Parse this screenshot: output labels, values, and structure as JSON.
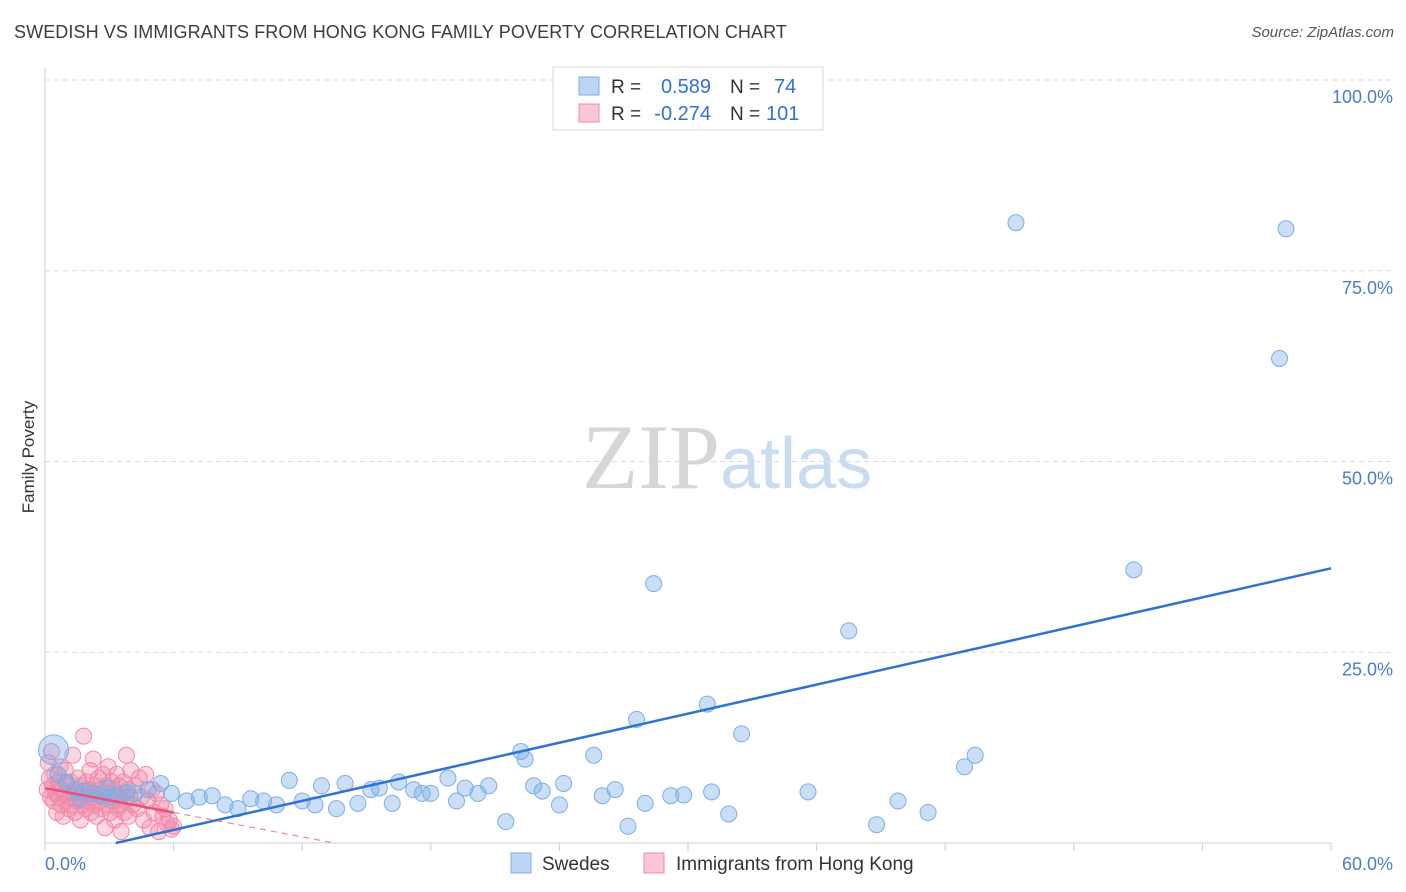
{
  "title": "SWEDISH VS IMMIGRANTS FROM HONG KONG FAMILY POVERTY CORRELATION CHART",
  "source": "Source: ZipAtlas.com",
  "watermark": {
    "zip": "ZIP",
    "atlas": "atlas"
  },
  "colors": {
    "blue": "#7aaee8",
    "blue_line": "#2f72d4",
    "pink": "#f08aaa",
    "pink_line": "#e8507e",
    "axis_text": "#4a7cc8",
    "grid": "#dcdcdc"
  },
  "legend": {
    "rows": [
      {
        "r_label": "R =",
        "r_value": "0.589",
        "n_label": "N =",
        "n_value": "74"
      },
      {
        "r_label": "R =",
        "r_value": "-0.274",
        "n_label": "N =",
        "n_value": "101"
      }
    ]
  },
  "bottom_legend": [
    "Swedes",
    "Immigrants from Hong Kong"
  ],
  "chart_data": {
    "type": "scatter",
    "xlabel": "",
    "ylabel": "Family Poverty",
    "xlim": [
      0,
      60
    ],
    "ylim": [
      0,
      100
    ],
    "x_tick_labels": [
      "0.0%",
      "60.0%"
    ],
    "y_tick_labels": [
      "25.0%",
      "50.0%",
      "75.0%",
      "100.0%"
    ],
    "y_ticks": [
      25,
      50,
      75,
      100
    ],
    "series": [
      {
        "name": "Swedes",
        "r": 0.589,
        "n": 74,
        "trend": {
          "x": [
            3.3,
            60
          ],
          "y": [
            0,
            36
          ]
        },
        "points": [
          [
            0.4,
            12.2
          ],
          [
            0.6,
            9.0
          ],
          [
            1.0,
            8.0
          ],
          [
            1.4,
            7.0
          ],
          [
            1.8,
            6.8
          ],
          [
            2.2,
            6.5
          ],
          [
            2.6,
            6.2
          ],
          [
            3.0,
            6.0
          ],
          [
            3.4,
            6.3
          ],
          [
            3.8,
            6.6
          ],
          [
            4.2,
            6.5
          ],
          [
            4.8,
            7.0
          ],
          [
            5.4,
            7.8
          ],
          [
            5.9,
            6.5
          ],
          [
            6.6,
            5.5
          ],
          [
            7.2,
            6.0
          ],
          [
            7.8,
            6.2
          ],
          [
            8.4,
            5.0
          ],
          [
            9.0,
            4.5
          ],
          [
            9.6,
            5.8
          ],
          [
            10.2,
            5.5
          ],
          [
            10.8,
            5.0
          ],
          [
            11.4,
            8.2
          ],
          [
            12.0,
            5.5
          ],
          [
            12.6,
            5.0
          ],
          [
            12.9,
            7.5
          ],
          [
            13.6,
            4.5
          ],
          [
            14.0,
            7.8
          ],
          [
            14.6,
            5.2
          ],
          [
            15.2,
            7.0
          ],
          [
            15.6,
            7.2
          ],
          [
            16.2,
            5.2
          ],
          [
            16.5,
            8.0
          ],
          [
            17.2,
            7.0
          ],
          [
            17.6,
            6.5
          ],
          [
            18.0,
            6.5
          ],
          [
            18.8,
            8.5
          ],
          [
            19.2,
            5.5
          ],
          [
            19.6,
            7.2
          ],
          [
            20.2,
            6.5
          ],
          [
            20.7,
            7.5
          ],
          [
            21.5,
            2.8
          ],
          [
            22.2,
            12.0
          ],
          [
            22.4,
            11.0
          ],
          [
            22.8,
            7.5
          ],
          [
            23.2,
            6.8
          ],
          [
            24.0,
            5.0
          ],
          [
            24.2,
            7.8
          ],
          [
            25.6,
            11.5
          ],
          [
            26.0,
            6.2
          ],
          [
            26.6,
            7.0
          ],
          [
            27.2,
            2.2
          ],
          [
            27.6,
            16.2
          ],
          [
            28.0,
            5.2
          ],
          [
            28.4,
            34.0
          ],
          [
            29.2,
            6.2
          ],
          [
            29.8,
            6.3
          ],
          [
            30.9,
            18.2
          ],
          [
            31.1,
            6.7
          ],
          [
            31.9,
            3.8
          ],
          [
            32.5,
            14.3
          ],
          [
            35.6,
            6.7
          ],
          [
            37.5,
            27.8
          ],
          [
            38.8,
            2.4
          ],
          [
            39.8,
            5.5
          ],
          [
            41.2,
            4.0
          ],
          [
            42.9,
            10.0
          ],
          [
            43.4,
            11.5
          ],
          [
            45.3,
            81.3
          ],
          [
            50.8,
            35.8
          ],
          [
            57.6,
            63.5
          ],
          [
            57.9,
            80.5
          ],
          [
            1.6,
            5.8
          ],
          [
            2.9,
            7.2
          ]
        ]
      },
      {
        "name": "Immigrants from Hong Kong",
        "r": -0.274,
        "n": 101,
        "trend": {
          "x": [
            0,
            6.0
          ],
          "y": [
            7.2,
            4.0
          ]
        },
        "trend_extension": {
          "x": [
            6.0,
            13.5
          ],
          "y": [
            4.0,
            0
          ]
        },
        "points": [
          [
            0.1,
            7.0
          ],
          [
            0.15,
            10.5
          ],
          [
            0.2,
            8.5
          ],
          [
            0.25,
            6.0
          ],
          [
            0.3,
            12.0
          ],
          [
            0.35,
            7.5
          ],
          [
            0.4,
            5.5
          ],
          [
            0.45,
            9.0
          ],
          [
            0.5,
            6.5
          ],
          [
            0.55,
            4.0
          ],
          [
            0.6,
            8.0
          ],
          [
            0.65,
            6.0
          ],
          [
            0.7,
            10.0
          ],
          [
            0.75,
            5.0
          ],
          [
            0.8,
            7.0
          ],
          [
            0.85,
            3.5
          ],
          [
            0.9,
            6.5
          ],
          [
            0.95,
            9.5
          ],
          [
            1.0,
            5.5
          ],
          [
            1.05,
            7.5
          ],
          [
            1.1,
            4.5
          ],
          [
            1.15,
            6.0
          ],
          [
            1.2,
            8.0
          ],
          [
            1.25,
            5.0
          ],
          [
            1.3,
            11.5
          ],
          [
            1.35,
            6.5
          ],
          [
            1.4,
            4.0
          ],
          [
            1.45,
            7.0
          ],
          [
            1.5,
            5.5
          ],
          [
            1.55,
            8.5
          ],
          [
            1.6,
            6.0
          ],
          [
            1.65,
            3.0
          ],
          [
            1.7,
            7.5
          ],
          [
            1.75,
            5.0
          ],
          [
            1.8,
            14.0
          ],
          [
            1.85,
            6.5
          ],
          [
            1.9,
            4.5
          ],
          [
            1.95,
            8.0
          ],
          [
            2.0,
            5.5
          ],
          [
            2.05,
            7.0
          ],
          [
            2.1,
            9.5
          ],
          [
            2.15,
            4.0
          ],
          [
            2.2,
            6.0
          ],
          [
            2.25,
            11.0
          ],
          [
            2.3,
            5.0
          ],
          [
            2.35,
            7.5
          ],
          [
            2.4,
            3.5
          ],
          [
            2.45,
            6.5
          ],
          [
            2.5,
            8.5
          ],
          [
            2.55,
            5.5
          ],
          [
            2.6,
            7.0
          ],
          [
            2.65,
            4.5
          ],
          [
            2.7,
            9.0
          ],
          [
            2.75,
            6.0
          ],
          [
            2.8,
            2.0
          ],
          [
            2.85,
            7.5
          ],
          [
            2.9,
            5.0
          ],
          [
            2.95,
            10.0
          ],
          [
            3.0,
            6.5
          ],
          [
            3.05,
            4.0
          ],
          [
            3.1,
            8.0
          ],
          [
            3.15,
            5.5
          ],
          [
            3.2,
            7.0
          ],
          [
            3.25,
            3.0
          ],
          [
            3.3,
            6.0
          ],
          [
            3.35,
            9.0
          ],
          [
            3.4,
            4.5
          ],
          [
            3.45,
            7.5
          ],
          [
            3.5,
            5.0
          ],
          [
            3.55,
            1.5
          ],
          [
            3.6,
            6.5
          ],
          [
            3.65,
            8.0
          ],
          [
            3.7,
            4.0
          ],
          [
            3.75,
            5.5
          ],
          [
            3.8,
            11.5
          ],
          [
            3.85,
            7.0
          ],
          [
            3.9,
            3.5
          ],
          [
            3.95,
            6.0
          ],
          [
            4.0,
            9.5
          ],
          [
            4.1,
            5.0
          ],
          [
            4.2,
            7.5
          ],
          [
            4.3,
            4.5
          ],
          [
            4.4,
            8.5
          ],
          [
            4.5,
            6.0
          ],
          [
            4.6,
            3.0
          ],
          [
            4.7,
            9.0
          ],
          [
            4.8,
            5.5
          ],
          [
            4.9,
            2.0
          ],
          [
            5.0,
            7.0
          ],
          [
            5.1,
            4.0
          ],
          [
            5.2,
            6.5
          ],
          [
            5.3,
            1.5
          ],
          [
            5.4,
            5.0
          ],
          [
            5.5,
            3.5
          ],
          [
            5.6,
            4.5
          ],
          [
            5.7,
            2.5
          ],
          [
            5.8,
            3.0
          ],
          [
            5.9,
            1.8
          ],
          [
            6.0,
            2.2
          ],
          [
            1.0,
            7.8
          ],
          [
            2.0,
            6.8
          ]
        ]
      }
    ],
    "legend_position": "top-center"
  }
}
